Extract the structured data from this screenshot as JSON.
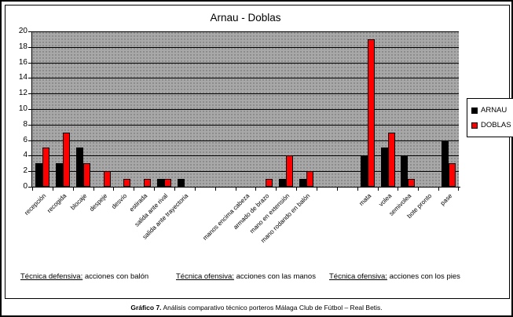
{
  "chart_data": {
    "type": "bar",
    "title": "Arnau - Doblas",
    "categories": [
      "recepción",
      "recogida",
      "blocaje",
      "despeje",
      "desvío",
      "estirada",
      "salida ante rival",
      "salida ante trayectoria",
      "",
      "",
      "manos encima cabeza",
      "armado de brazo",
      "mano en extensión",
      "mano rodando en balón",
      "",
      "",
      "mata",
      "volea",
      "semivolea",
      "bote pronto",
      "pase"
    ],
    "series": [
      {
        "name": "ARNAU",
        "color": "#000000",
        "values": [
          3,
          3,
          5,
          0,
          0,
          0,
          1,
          1,
          0,
          0,
          0,
          0,
          1,
          1,
          0,
          0,
          4,
          5,
          4,
          0,
          6
        ]
      },
      {
        "name": "DOBLAS",
        "color": "#FF0000",
        "values": [
          5,
          7,
          3,
          2,
          1,
          1,
          1,
          0,
          0,
          0,
          0,
          1,
          4,
          2,
          0,
          0,
          19,
          7,
          1,
          0,
          3
        ]
      }
    ],
    "ylim": [
      0,
      20
    ],
    "ytick_step": 2,
    "grid": "horizontal-black-lines",
    "plot_bg": "#A8A8A8",
    "legend_position": "right",
    "xlabel": "",
    "ylabel": ""
  },
  "annotations": [
    {
      "underlined": "Técnica defensiva:",
      "rest": " acciones con balón"
    },
    {
      "underlined": "Técnica ofensiva:",
      "rest": " acciones con las manos"
    },
    {
      "underlined": "Técnica ofensiva:",
      "rest": " acciones con los pies"
    }
  ],
  "caption": {
    "bold": "Gráfico 7.",
    "text": " Análisis comparativo técnico porteros Málaga Club de Fútbol – Real Betis."
  }
}
